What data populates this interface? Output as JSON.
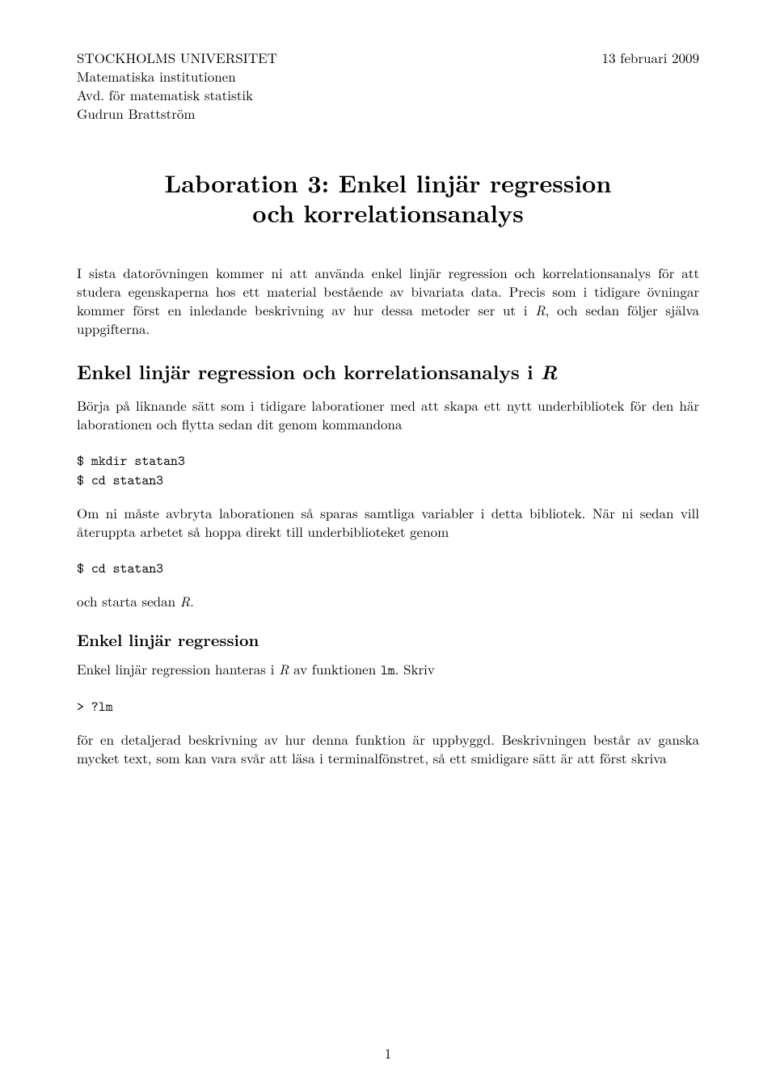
{
  "header": {
    "line1": "STOCKHOLMS UNIVERSITET",
    "line2": "Matematiska institutionen",
    "line3": "Avd. för matematisk statistik",
    "line4": "Gudrun Brattström",
    "date": "13 februari 2009"
  },
  "title": {
    "line1": "Laboration 3: Enkel linjär regression",
    "line2": "och korrelationsanalys"
  },
  "intro": {
    "t1": "I sista datorövningen kommer ni att använda enkel linjär regression och korrelationsanalys för att studera egenskaperna hos ett material bestående av bivariata data. Precis som i tidigare övningar kommer först en inledande beskrivning av hur dessa metoder ser ut i ",
    "R1": "R",
    "t2": ", och sedan följer själva uppgifterna."
  },
  "section1": {
    "heading_pre": "Enkel linjär regression och korrelationsanalys i ",
    "heading_R": "R",
    "p1": "Börja på liknande sätt som i tidigare laborationer med att skapa ett nytt underbibliotek för den här laborationen och flytta sedan dit genom kommandona",
    "code1": "$ mkdir statan3\n$ cd statan3",
    "p2": "Om ni måste avbryta laborationen så sparas samtliga variabler i detta bibliotek. När ni sedan vill återuppta arbetet så hoppa direkt till underbiblioteket genom",
    "code2": "$ cd statan3",
    "p3_a": "och starta sedan ",
    "p3_R": "R",
    "p3_b": "."
  },
  "section2": {
    "heading": "Enkel linjär regression",
    "p1_a": "Enkel linjär regression hanteras i ",
    "p1_R": "R",
    "p1_b": " av funktionen ",
    "p1_tt": "lm",
    "p1_c": ". Skriv",
    "code1": "> ?lm",
    "p2": "för en detaljerad beskrivning av hur denna funktion är uppbyggd. Beskrivningen består av ganska mycket text, som kan vara svår att läsa i terminalfönstret, så ett smidigare sätt är att först skriva"
  },
  "pagenum": "1"
}
